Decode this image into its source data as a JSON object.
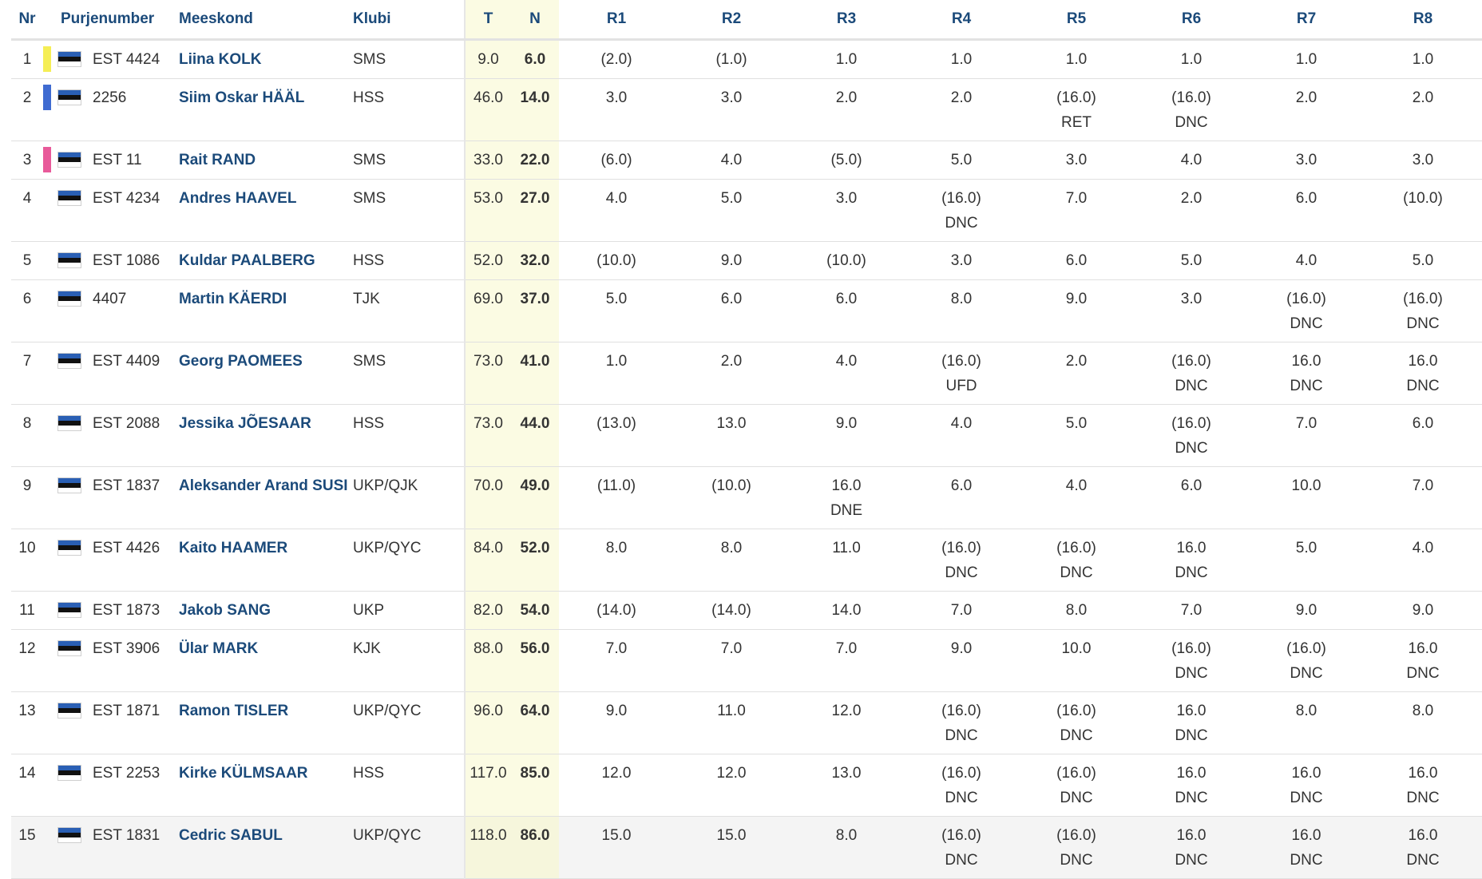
{
  "colors": {
    "gold": "#f5ee55",
    "silver": "#3f6bd1",
    "bronze": "#e85a9a",
    "flag_blue": "#2a5fb4",
    "flag_black": "#111111",
    "flag_white": "#ffffff"
  },
  "headers": [
    "Nr",
    "Purjenumber",
    "Meeskond",
    "Klubi",
    "T",
    "N",
    "R1",
    "R2",
    "R3",
    "R4",
    "R5",
    "R6",
    "R7",
    "R8"
  ],
  "rows": [
    {
      "nr": "1",
      "sail": "EST 4424",
      "name": "Liina KOLK",
      "club": "SMS",
      "t": "9.0",
      "n": "6.0",
      "marker": "gold",
      "r": [
        [
          "(2.0)",
          ""
        ],
        [
          "(1.0)",
          ""
        ],
        [
          "1.0",
          ""
        ],
        [
          "1.0",
          ""
        ],
        [
          "1.0",
          ""
        ],
        [
          "1.0",
          ""
        ],
        [
          "1.0",
          ""
        ],
        [
          "1.0",
          ""
        ]
      ]
    },
    {
      "nr": "2",
      "sail": "2256",
      "name": "Siim Oskar HÄÄL",
      "club": "HSS",
      "t": "46.0",
      "n": "14.0",
      "marker": "silver",
      "r": [
        [
          "3.0",
          ""
        ],
        [
          "3.0",
          ""
        ],
        [
          "2.0",
          ""
        ],
        [
          "2.0",
          ""
        ],
        [
          "(16.0)",
          "RET"
        ],
        [
          "(16.0)",
          "DNC"
        ],
        [
          "2.0",
          ""
        ],
        [
          "2.0",
          ""
        ]
      ]
    },
    {
      "nr": "3",
      "sail": "EST 11",
      "name": "Rait RAND",
      "club": "SMS",
      "t": "33.0",
      "n": "22.0",
      "marker": "bronze",
      "r": [
        [
          "(6.0)",
          ""
        ],
        [
          "4.0",
          ""
        ],
        [
          "(5.0)",
          ""
        ],
        [
          "5.0",
          ""
        ],
        [
          "3.0",
          ""
        ],
        [
          "4.0",
          ""
        ],
        [
          "3.0",
          ""
        ],
        [
          "3.0",
          ""
        ]
      ]
    },
    {
      "nr": "4",
      "sail": "EST 4234",
      "name": "Andres HAAVEL",
      "club": "SMS",
      "t": "53.0",
      "n": "27.0",
      "marker": "none",
      "r": [
        [
          "4.0",
          ""
        ],
        [
          "5.0",
          ""
        ],
        [
          "3.0",
          ""
        ],
        [
          "(16.0)",
          "DNC"
        ],
        [
          "7.0",
          ""
        ],
        [
          "2.0",
          ""
        ],
        [
          "6.0",
          ""
        ],
        [
          "(10.0)",
          ""
        ]
      ]
    },
    {
      "nr": "5",
      "sail": "EST 1086",
      "name": "Kuldar PAALBERG",
      "club": "HSS",
      "t": "52.0",
      "n": "32.0",
      "marker": "none",
      "r": [
        [
          "(10.0)",
          ""
        ],
        [
          "9.0",
          ""
        ],
        [
          "(10.0)",
          ""
        ],
        [
          "3.0",
          ""
        ],
        [
          "6.0",
          ""
        ],
        [
          "5.0",
          ""
        ],
        [
          "4.0",
          ""
        ],
        [
          "5.0",
          ""
        ]
      ]
    },
    {
      "nr": "6",
      "sail": "4407",
      "name": "Martin KÄERDI",
      "club": "TJK",
      "t": "69.0",
      "n": "37.0",
      "marker": "none",
      "r": [
        [
          "5.0",
          ""
        ],
        [
          "6.0",
          ""
        ],
        [
          "6.0",
          ""
        ],
        [
          "8.0",
          ""
        ],
        [
          "9.0",
          ""
        ],
        [
          "3.0",
          ""
        ],
        [
          "(16.0)",
          "DNC"
        ],
        [
          "(16.0)",
          "DNC"
        ]
      ]
    },
    {
      "nr": "7",
      "sail": "EST 4409",
      "name": "Georg PAOMEES",
      "club": "SMS",
      "t": "73.0",
      "n": "41.0",
      "marker": "none",
      "r": [
        [
          "1.0",
          ""
        ],
        [
          "2.0",
          ""
        ],
        [
          "4.0",
          ""
        ],
        [
          "(16.0)",
          "UFD"
        ],
        [
          "2.0",
          ""
        ],
        [
          "(16.0)",
          "DNC"
        ],
        [
          "16.0",
          "DNC"
        ],
        [
          "16.0",
          "DNC"
        ]
      ]
    },
    {
      "nr": "8",
      "sail": "EST 2088",
      "name": "Jessika JÕESAAR",
      "club": "HSS",
      "t": "73.0",
      "n": "44.0",
      "marker": "none",
      "r": [
        [
          "(13.0)",
          ""
        ],
        [
          "13.0",
          ""
        ],
        [
          "9.0",
          ""
        ],
        [
          "4.0",
          ""
        ],
        [
          "5.0",
          ""
        ],
        [
          "(16.0)",
          "DNC"
        ],
        [
          "7.0",
          ""
        ],
        [
          "6.0",
          ""
        ]
      ]
    },
    {
      "nr": "9",
      "sail": "EST 1837",
      "name": "Aleksander Arand SUSI",
      "club": "UKP/QJK",
      "t": "70.0",
      "n": "49.0",
      "marker": "none",
      "r": [
        [
          "(11.0)",
          ""
        ],
        [
          "(10.0)",
          ""
        ],
        [
          "16.0",
          "DNE"
        ],
        [
          "6.0",
          ""
        ],
        [
          "4.0",
          ""
        ],
        [
          "6.0",
          ""
        ],
        [
          "10.0",
          ""
        ],
        [
          "7.0",
          ""
        ]
      ]
    },
    {
      "nr": "10",
      "sail": "EST 4426",
      "name": "Kaito HAAMER",
      "club": "UKP/QYC",
      "t": "84.0",
      "n": "52.0",
      "marker": "none",
      "r": [
        [
          "8.0",
          ""
        ],
        [
          "8.0",
          ""
        ],
        [
          "11.0",
          ""
        ],
        [
          "(16.0)",
          "DNC"
        ],
        [
          "(16.0)",
          "DNC"
        ],
        [
          "16.0",
          "DNC"
        ],
        [
          "5.0",
          ""
        ],
        [
          "4.0",
          ""
        ]
      ]
    },
    {
      "nr": "11",
      "sail": "EST 1873",
      "name": "Jakob SANG",
      "club": "UKP",
      "t": "82.0",
      "n": "54.0",
      "marker": "none",
      "r": [
        [
          "(14.0)",
          ""
        ],
        [
          "(14.0)",
          ""
        ],
        [
          "14.0",
          ""
        ],
        [
          "7.0",
          ""
        ],
        [
          "8.0",
          ""
        ],
        [
          "7.0",
          ""
        ],
        [
          "9.0",
          ""
        ],
        [
          "9.0",
          ""
        ]
      ]
    },
    {
      "nr": "12",
      "sail": "EST 3906",
      "name": "Ülar MARK",
      "club": "KJK",
      "t": "88.0",
      "n": "56.0",
      "marker": "none",
      "r": [
        [
          "7.0",
          ""
        ],
        [
          "7.0",
          ""
        ],
        [
          "7.0",
          ""
        ],
        [
          "9.0",
          ""
        ],
        [
          "10.0",
          ""
        ],
        [
          "(16.0)",
          "DNC"
        ],
        [
          "(16.0)",
          "DNC"
        ],
        [
          "16.0",
          "DNC"
        ]
      ]
    },
    {
      "nr": "13",
      "sail": "EST 1871",
      "name": "Ramon TISLER",
      "club": "UKP/QYC",
      "t": "96.0",
      "n": "64.0",
      "marker": "none",
      "r": [
        [
          "9.0",
          ""
        ],
        [
          "11.0",
          ""
        ],
        [
          "12.0",
          ""
        ],
        [
          "(16.0)",
          "DNC"
        ],
        [
          "(16.0)",
          "DNC"
        ],
        [
          "16.0",
          "DNC"
        ],
        [
          "8.0",
          ""
        ],
        [
          "8.0",
          ""
        ]
      ]
    },
    {
      "nr": "14",
      "sail": "EST 2253",
      "name": "Kirke KÜLMSAAR",
      "club": "HSS",
      "t": "117.0",
      "n": "85.0",
      "marker": "none",
      "r": [
        [
          "12.0",
          ""
        ],
        [
          "12.0",
          ""
        ],
        [
          "13.0",
          ""
        ],
        [
          "(16.0)",
          "DNC"
        ],
        [
          "(16.0)",
          "DNC"
        ],
        [
          "16.0",
          "DNC"
        ],
        [
          "16.0",
          "DNC"
        ],
        [
          "16.0",
          "DNC"
        ]
      ]
    },
    {
      "nr": "15",
      "sail": "EST 1831",
      "name": "Cedric SABUL",
      "club": "UKP/QYC",
      "t": "118.0",
      "n": "86.0",
      "marker": "none",
      "r": [
        [
          "15.0",
          ""
        ],
        [
          "15.0",
          ""
        ],
        [
          "8.0",
          ""
        ],
        [
          "(16.0)",
          "DNC"
        ],
        [
          "(16.0)",
          "DNC"
        ],
        [
          "16.0",
          "DNC"
        ],
        [
          "16.0",
          "DNC"
        ],
        [
          "16.0",
          "DNC"
        ]
      ]
    }
  ]
}
